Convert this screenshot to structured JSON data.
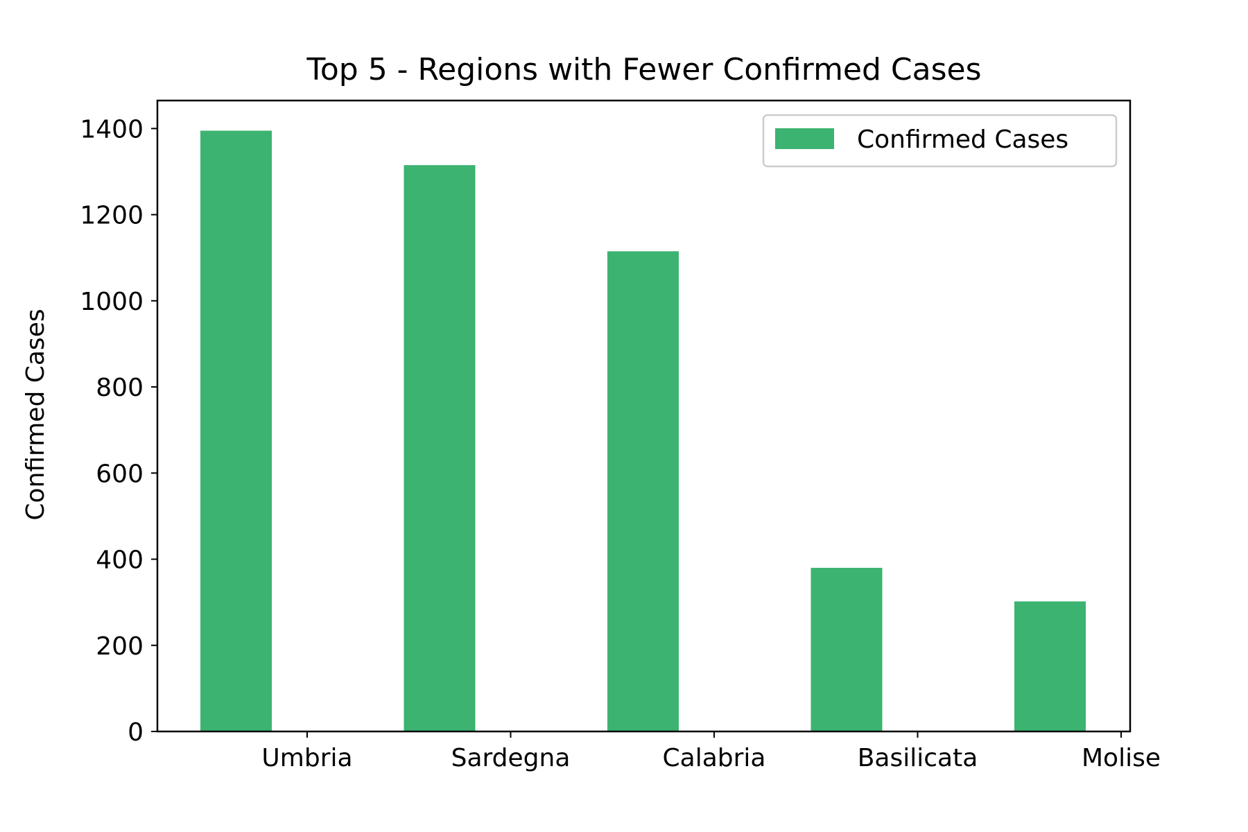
{
  "chart_data": {
    "type": "bar",
    "title": "Top 5 - Regions with Fewer Confirmed Cases",
    "xlabel": "",
    "ylabel": "Confirmed Cases",
    "categories": [
      "Umbria",
      "Sardegna",
      "Calabria",
      "Basilicata",
      "Molise"
    ],
    "series": [
      {
        "name": "Confirmed Cases",
        "values": [
          1395,
          1315,
          1115,
          380,
          302
        ],
        "color": "#3cb371"
      }
    ],
    "ylim": [
      0,
      1465
    ],
    "yticks": [
      0,
      200,
      400,
      600,
      800,
      1000,
      1200,
      1400
    ],
    "grid": false,
    "legend": "top-right"
  }
}
